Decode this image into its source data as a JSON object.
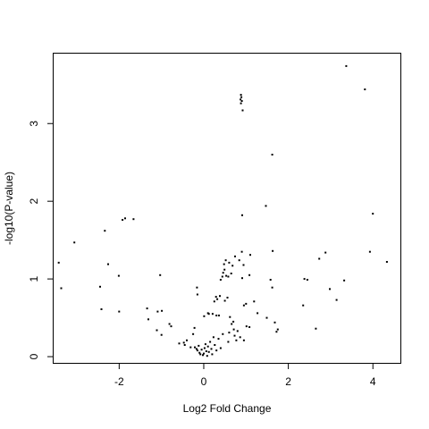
{
  "chart_data": {
    "type": "scatter",
    "title": "",
    "xlabel": "Log2 Fold Change",
    "ylabel": "-log10(P-value)",
    "xlim": [
      -3.55,
      4.65
    ],
    "ylim": [
      -0.08,
      3.9
    ],
    "grid": false,
    "legend": "none",
    "x_ticks": [
      -2,
      0,
      2,
      4
    ],
    "x_tick_labels": [
      "-2",
      "0",
      "2",
      "4"
    ],
    "y_ticks": [
      0,
      1,
      2,
      3
    ],
    "y_tick_labels": [
      "0",
      "1",
      "2",
      "3"
    ],
    "point_color": "#000000",
    "series": [
      {
        "points": [
          [
            3.37,
            3.74
          ],
          [
            3.81,
            3.44
          ],
          [
            0.88,
            3.37
          ],
          [
            0.89,
            3.34
          ],
          [
            0.87,
            3.31
          ],
          [
            0.9,
            3.29
          ],
          [
            0.88,
            3.26
          ],
          [
            0.92,
            3.17
          ],
          [
            1.62,
            2.6
          ],
          [
            1.47,
            1.94
          ],
          [
            0.91,
            1.82
          ],
          [
            4.0,
            1.84
          ],
          [
            -1.92,
            1.76
          ],
          [
            -1.86,
            1.78
          ],
          [
            -1.66,
            1.77
          ],
          [
            -2.34,
            1.62
          ],
          [
            -3.06,
            1.47
          ],
          [
            -3.43,
            1.21
          ],
          [
            -2.26,
            1.19
          ],
          [
            -2.01,
            1.04
          ],
          [
            -1.03,
            1.05
          ],
          [
            -3.37,
            0.88
          ],
          [
            -2.45,
            0.9
          ],
          [
            -2.42,
            0.61
          ],
          [
            -2.0,
            0.58
          ],
          [
            -1.34,
            0.62
          ],
          [
            -0.99,
            0.59
          ],
          [
            -1.09,
            0.58
          ],
          [
            -1.31,
            0.48
          ],
          [
            -1.11,
            0.34
          ],
          [
            -1.0,
            0.28
          ],
          [
            -0.81,
            0.42
          ],
          [
            -0.77,
            0.39
          ],
          [
            -0.58,
            0.17
          ],
          [
            -0.47,
            0.18
          ],
          [
            -0.4,
            0.21
          ],
          [
            -0.45,
            0.15
          ],
          [
            -0.31,
            0.12
          ],
          [
            -0.22,
            0.37
          ],
          [
            -0.21,
            0.12
          ],
          [
            -0.17,
            0.1
          ],
          [
            -0.15,
            0.08
          ],
          [
            -0.12,
            0.14
          ],
          [
            -0.1,
            0.05
          ],
          [
            -0.08,
            0.03
          ],
          [
            -0.05,
            0.09
          ],
          [
            -0.02,
            0.02
          ],
          [
            0.0,
            0.04
          ],
          [
            0.02,
            0.11
          ],
          [
            0.04,
            0.16
          ],
          [
            0.06,
            0.07
          ],
          [
            0.08,
            0.01
          ],
          [
            0.1,
            0.13
          ],
          [
            0.12,
            0.06
          ],
          [
            0.15,
            0.19
          ],
          [
            0.18,
            0.1
          ],
          [
            0.2,
            0.03
          ],
          [
            0.23,
            0.25
          ],
          [
            0.26,
            0.15
          ],
          [
            0.3,
            0.08
          ],
          [
            0.35,
            0.23
          ],
          [
            0.4,
            0.11
          ],
          [
            -0.25,
            0.29
          ],
          [
            0.45,
            0.29
          ],
          [
            0.58,
            0.19
          ],
          [
            0.6,
            0.31
          ],
          [
            0.73,
            0.27
          ],
          [
            0.77,
            0.21
          ],
          [
            0.1,
            0.56
          ],
          [
            0.12,
            0.55
          ],
          [
            0.21,
            0.55
          ],
          [
            0.3,
            0.53
          ],
          [
            0.36,
            0.53
          ],
          [
            0.25,
            0.71
          ],
          [
            0.32,
            0.74
          ],
          [
            0.38,
            0.78
          ],
          [
            0.29,
            0.77
          ],
          [
            0.56,
            0.76
          ],
          [
            0.5,
            0.72
          ],
          [
            0.62,
            0.51
          ],
          [
            0.7,
            0.45
          ],
          [
            0.66,
            0.42
          ],
          [
            0.71,
            0.35
          ],
          [
            0.8,
            0.33
          ],
          [
            0.86,
            0.25
          ],
          [
            0.95,
            0.21
          ],
          [
            1.01,
            0.39
          ],
          [
            1.08,
            0.38
          ],
          [
            -0.16,
            0.89
          ],
          [
            -0.15,
            0.8
          ],
          [
            0.01,
            0.52
          ],
          [
            0.4,
            0.99
          ],
          [
            0.44,
            1.03
          ],
          [
            0.46,
            1.08
          ],
          [
            0.49,
            1.12
          ],
          [
            0.53,
            1.04
          ],
          [
            0.58,
            1.03
          ],
          [
            0.65,
            1.07
          ],
          [
            0.48,
            1.19
          ],
          [
            0.52,
            1.24
          ],
          [
            0.6,
            1.21
          ],
          [
            0.68,
            1.17
          ],
          [
            0.74,
            1.29
          ],
          [
            0.84,
            1.24
          ],
          [
            0.9,
            1.35
          ],
          [
            1.1,
            1.31
          ],
          [
            0.91,
            1.01
          ],
          [
            0.94,
            1.18
          ],
          [
            1.0,
            0.68
          ],
          [
            0.95,
            0.66
          ],
          [
            1.08,
            1.05
          ],
          [
            1.19,
            0.71
          ],
          [
            1.27,
            0.56
          ],
          [
            1.49,
            0.5
          ],
          [
            1.58,
            0.99
          ],
          [
            1.62,
            0.89
          ],
          [
            1.63,
            1.36
          ],
          [
            1.68,
            0.44
          ],
          [
            1.72,
            0.32
          ],
          [
            1.75,
            0.35
          ],
          [
            2.38,
            1.0
          ],
          [
            2.45,
            0.99
          ],
          [
            2.35,
            0.66
          ],
          [
            2.65,
            0.36
          ],
          [
            2.73,
            1.26
          ],
          [
            2.88,
            1.34
          ],
          [
            2.98,
            0.87
          ],
          [
            3.14,
            0.73
          ],
          [
            3.32,
            0.98
          ],
          [
            3.93,
            1.35
          ],
          [
            4.33,
            1.22
          ]
        ]
      }
    ]
  }
}
